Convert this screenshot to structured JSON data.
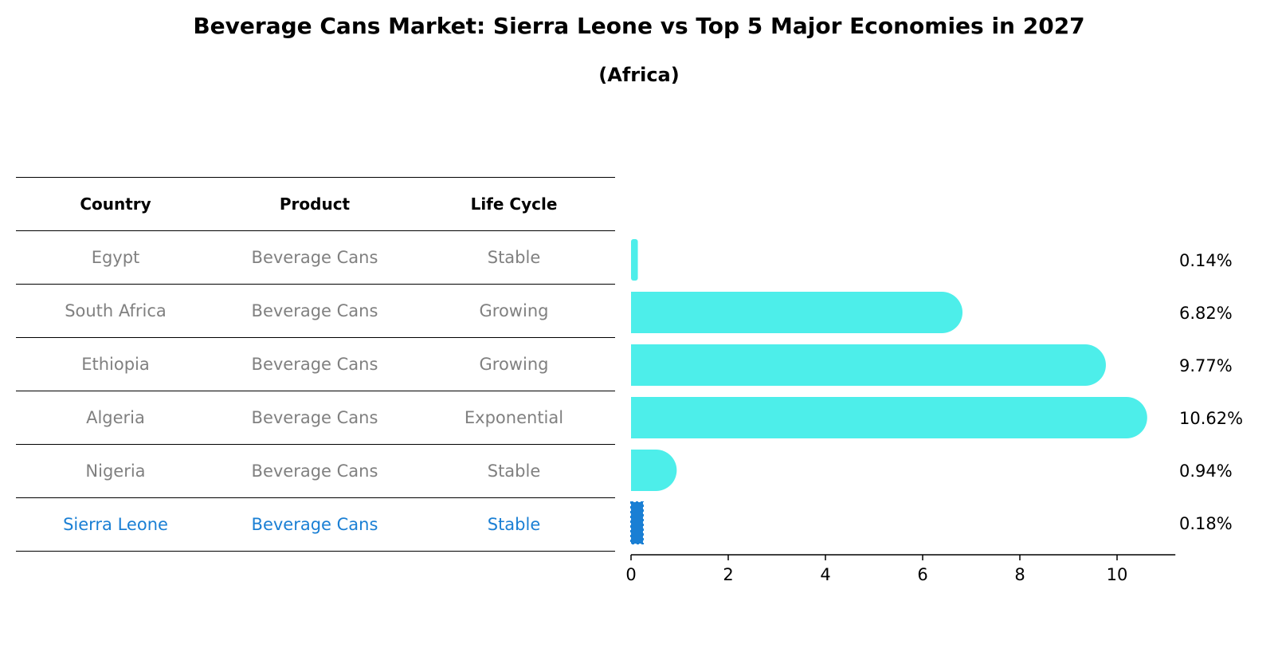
{
  "title": "Beverage Cans Market: Sierra Leone vs Top 5 Major Economies in 2027",
  "subtitle": "(Africa)",
  "table": {
    "headers": [
      "Country",
      "Product",
      "Life Cycle"
    ],
    "rows": [
      {
        "country": "Egypt",
        "product": "Beverage Cans",
        "life_cycle": "Stable"
      },
      {
        "country": "South Africa",
        "product": "Beverage Cans",
        "life_cycle": "Growing"
      },
      {
        "country": "Ethiopia",
        "product": "Beverage Cans",
        "life_cycle": "Growing"
      },
      {
        "country": "Algeria",
        "product": "Beverage Cans",
        "life_cycle": "Exponential"
      },
      {
        "country": "Nigeria",
        "product": "Beverage Cans",
        "life_cycle": "Stable"
      },
      {
        "country": "Sierra Leone",
        "product": "Beverage Cans",
        "life_cycle": "Stable"
      }
    ]
  },
  "colors": {
    "bar": "#4deeea",
    "highlight": "#1a7fd4",
    "muted_text": "#808080"
  },
  "chart_data": {
    "type": "bar",
    "orientation": "horizontal",
    "title": "Beverage Cans Market: Sierra Leone vs Top 5 Major Economies in 2027",
    "subtitle": "(Africa)",
    "categories": [
      "Egypt",
      "South Africa",
      "Ethiopia",
      "Algeria",
      "Nigeria",
      "Sierra Leone"
    ],
    "values": [
      0.14,
      6.82,
      9.77,
      10.62,
      0.94,
      0.18
    ],
    "value_labels": [
      "0.14%",
      "6.82%",
      "9.77%",
      "10.62%",
      "0.94%",
      "0.18%"
    ],
    "highlight_category": "Sierra Leone",
    "xlim": [
      0,
      11.2
    ],
    "xticks": [
      0,
      2,
      4,
      6,
      8,
      10
    ],
    "xlabel": "",
    "ylabel": "",
    "grid": false,
    "legend": "none"
  }
}
